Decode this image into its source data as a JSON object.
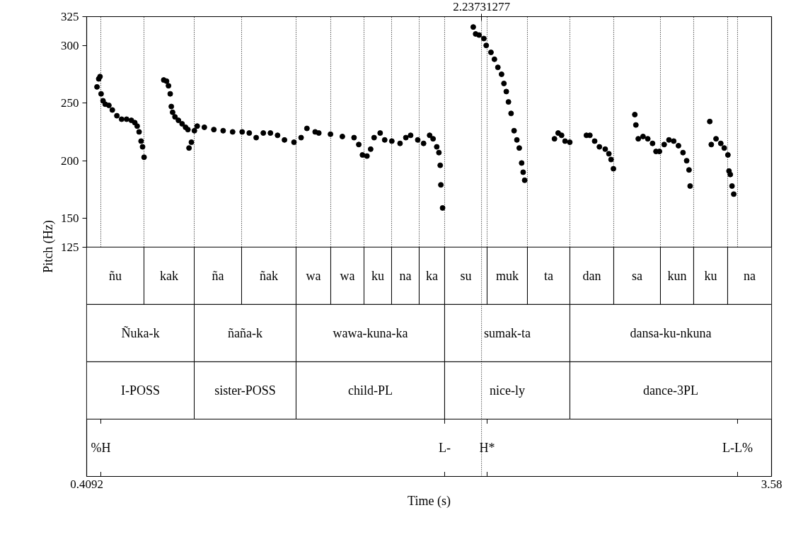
{
  "chart_data": {
    "type": "scatter",
    "ylabel": "Pitch (Hz)",
    "xlabel": "Time (s)",
    "color": "#000000",
    "marker": "circle",
    "xlim": [
      0.4092,
      3.58
    ],
    "xticks": [
      0.4092,
      3.58
    ],
    "ylim": [
      -74,
      325
    ],
    "yticks": [
      125,
      150,
      200,
      250,
      300,
      325
    ],
    "x": [
      0.457,
      0.465,
      0.471,
      0.476,
      0.485,
      0.495,
      0.512,
      0.528,
      0.549,
      0.571,
      0.594,
      0.616,
      0.632,
      0.643,
      0.652,
      0.661,
      0.668,
      0.675,
      0.766,
      0.779,
      0.788,
      0.796,
      0.801,
      0.807,
      0.818,
      0.834,
      0.851,
      0.867,
      0.878,
      0.883,
      0.894,
      0.908,
      0.921,
      0.954,
      0.998,
      1.041,
      1.085,
      1.129,
      1.162,
      1.194,
      1.227,
      1.26,
      1.293,
      1.325,
      1.369,
      1.402,
      1.429,
      1.467,
      1.484,
      1.538,
      1.593,
      1.647,
      1.669,
      1.686,
      1.707,
      1.724,
      1.74,
      1.768,
      1.789,
      1.822,
      1.86,
      1.887,
      1.909,
      1.942,
      1.969,
      1.997,
      2.013,
      2.03,
      2.04,
      2.046,
      2.049,
      2.057,
      2.199,
      2.21,
      2.226,
      2.248,
      2.259,
      2.281,
      2.297,
      2.313,
      2.33,
      2.341,
      2.352,
      2.362,
      2.374,
      2.388,
      2.401,
      2.412,
      2.423,
      2.43,
      2.437,
      2.575,
      2.592,
      2.608,
      2.624,
      2.646,
      2.723,
      2.739,
      2.761,
      2.783,
      2.81,
      2.827,
      2.837,
      2.848,
      2.947,
      2.952,
      2.963,
      2.985,
      3.007,
      3.029,
      3.045,
      3.061,
      3.083,
      3.105,
      3.127,
      3.149,
      3.17,
      3.187,
      3.198,
      3.203,
      3.294,
      3.301,
      3.323,
      3.345,
      3.361,
      3.378,
      3.383,
      3.389,
      3.397,
      3.405
    ],
    "values": [
      264,
      271,
      273,
      258,
      252,
      249,
      248,
      244,
      239,
      236,
      236,
      235,
      233,
      230,
      225,
      217,
      212,
      203,
      270,
      269,
      265,
      258,
      247,
      242,
      238,
      235,
      232,
      229,
      227,
      211,
      216,
      226,
      230,
      229,
      227,
      226,
      225,
      225,
      224,
      220,
      224,
      224,
      222,
      218,
      216,
      220,
      228,
      225,
      224,
      223,
      221,
      220,
      214,
      205,
      204,
      210,
      220,
      224,
      218,
      217,
      215,
      220,
      222,
      218,
      215,
      222,
      219,
      212,
      207,
      196,
      179,
      159,
      316,
      310,
      309,
      306,
      300,
      294,
      288,
      281,
      275,
      267,
      260,
      251,
      241,
      226,
      218,
      211,
      198,
      190,
      183,
      219,
      224,
      222,
      217,
      216,
      222,
      222,
      217,
      212,
      210,
      206,
      201,
      193,
      240,
      231,
      219,
      221,
      219,
      215,
      208,
      208,
      214,
      218,
      217,
      213,
      207,
      200,
      192,
      178,
      234,
      214,
      219,
      215,
      211,
      205,
      191,
      188,
      178,
      171
    ],
    "ref_lines": [
      {
        "axis": "x",
        "value": 0.4747,
        "line_style": "dotted"
      },
      {
        "axis": "x",
        "value": 0.6745,
        "line_style": "dotted"
      },
      {
        "axis": "x",
        "value": 0.9071,
        "line_style": "dotted"
      },
      {
        "axis": "x",
        "value": 1.1265,
        "line_style": "dotted"
      },
      {
        "axis": "x",
        "value": 1.3787,
        "line_style": "dotted"
      },
      {
        "axis": "x",
        "value": 1.5392,
        "line_style": "dotted"
      },
      {
        "axis": "x",
        "value": 1.6932,
        "line_style": "dotted"
      },
      {
        "axis": "x",
        "value": 1.8209,
        "line_style": "dotted"
      },
      {
        "axis": "x",
        "value": 1.9486,
        "line_style": "dotted"
      },
      {
        "axis": "x",
        "value": 2.0665,
        "line_style": "dotted"
      },
      {
        "axis": "x",
        "value": 2.2631,
        "line_style": "dotted"
      },
      {
        "axis": "x",
        "value": 2.4498,
        "line_style": "dotted"
      },
      {
        "axis": "x",
        "value": 2.6463,
        "line_style": "dotted"
      },
      {
        "axis": "x",
        "value": 2.8494,
        "line_style": "dotted"
      },
      {
        "axis": "x",
        "value": 3.0656,
        "line_style": "dotted"
      },
      {
        "axis": "x",
        "value": 3.2195,
        "line_style": "dotted"
      },
      {
        "axis": "x",
        "value": 3.3768,
        "line_style": "dotted"
      },
      {
        "axis": "x",
        "value": 3.4226,
        "line_style": "dotted"
      },
      {
        "axis": "x",
        "value": 2.23731277,
        "label": "2.23731277",
        "line_style": "dotted"
      },
      {
        "axis": "x",
        "value": 0.4747,
        "label": "%H"
      },
      {
        "axis": "x",
        "value": 2.0665,
        "label": "L-"
      },
      {
        "axis": "x",
        "value": 2.2631,
        "label": "H*"
      },
      {
        "axis": "x",
        "value": 3.4226,
        "label": "L-L%"
      }
    ],
    "bands": [
      {
        "axis": "x",
        "from": 0.4092,
        "to": 0.6745,
        "label": "ñu"
      },
      {
        "axis": "x",
        "from": 0.6745,
        "to": 0.9071,
        "label": "kak"
      },
      {
        "axis": "x",
        "from": 0.9071,
        "to": 1.1265,
        "label": "ña"
      },
      {
        "axis": "x",
        "from": 1.1265,
        "to": 1.3787,
        "label": "ñak"
      },
      {
        "axis": "x",
        "from": 1.3787,
        "to": 1.5392,
        "label": "wa"
      },
      {
        "axis": "x",
        "from": 1.5392,
        "to": 1.6932,
        "label": "wa"
      },
      {
        "axis": "x",
        "from": 1.6932,
        "to": 1.8209,
        "label": "ku"
      },
      {
        "axis": "x",
        "from": 1.8209,
        "to": 1.9486,
        "label": "na"
      },
      {
        "axis": "x",
        "from": 1.9486,
        "to": 2.0665,
        "label": "ka"
      },
      {
        "axis": "x",
        "from": 2.0665,
        "to": 2.2631,
        "label": "su"
      },
      {
        "axis": "x",
        "from": 2.2631,
        "to": 2.4498,
        "label": "muk"
      },
      {
        "axis": "x",
        "from": 2.4498,
        "to": 2.6463,
        "label": "ta"
      },
      {
        "axis": "x",
        "from": 2.6463,
        "to": 2.8494,
        "label": "dan"
      },
      {
        "axis": "x",
        "from": 2.8494,
        "to": 3.0656,
        "label": "sa"
      },
      {
        "axis": "x",
        "from": 3.0656,
        "to": 3.2195,
        "label": "kun"
      },
      {
        "axis": "x",
        "from": 3.2195,
        "to": 3.3768,
        "label": "ku"
      },
      {
        "axis": "x",
        "from": 3.3768,
        "to": 3.58,
        "label": "na"
      },
      {
        "axis": "x",
        "from": 0.4092,
        "to": 0.9071,
        "label": "Ñuka-k"
      },
      {
        "axis": "x",
        "from": 0.9071,
        "to": 1.3787,
        "label": "ñaña-k"
      },
      {
        "axis": "x",
        "from": 1.3787,
        "to": 2.0665,
        "label": "wawa-kuna-ka"
      },
      {
        "axis": "x",
        "from": 2.0665,
        "to": 2.6463,
        "label": "sumak-ta"
      },
      {
        "axis": "x",
        "from": 2.6463,
        "to": 3.58,
        "label": "dansa-ku-nkuna"
      },
      {
        "axis": "x",
        "from": 0.4092,
        "to": 0.9071,
        "label": "I-POSS"
      },
      {
        "axis": "x",
        "from": 0.9071,
        "to": 1.3787,
        "label": "sister-POSS"
      },
      {
        "axis": "x",
        "from": 1.3787,
        "to": 2.0665,
        "label": "child-PL"
      },
      {
        "axis": "x",
        "from": 2.0665,
        "to": 2.6463,
        "label": "nice-ly"
      },
      {
        "axis": "x",
        "from": 2.6463,
        "to": 3.58,
        "label": "dance-3PL"
      }
    ]
  }
}
